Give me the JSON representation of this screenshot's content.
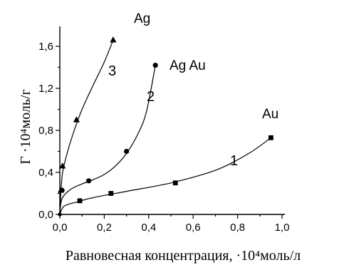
{
  "chart_data": {
    "type": "scatter",
    "xlabel": "Равновесная концентрация, ·10⁴моль/л",
    "ylabel": "Г ·10⁴моль/г",
    "xlim": [
      0.0,
      1.0
    ],
    "ylim": [
      0.0,
      1.7
    ],
    "xticks": [
      "0,0",
      "0,2",
      "0,4",
      "0,6",
      "0,8",
      "1,0"
    ],
    "yticks": [
      "0,0",
      "0,4",
      "0,8",
      "1,2",
      "1,6"
    ],
    "grid": false,
    "series": [
      {
        "name": "Ag",
        "curve_number": "3",
        "marker": "triangle",
        "points": [
          [
            0.0,
            0.0
          ],
          [
            0.005,
            0.23
          ],
          [
            0.012,
            0.46
          ],
          [
            0.075,
            0.9
          ],
          [
            0.24,
            1.66
          ]
        ],
        "fit": [
          [
            0.0,
            0.0
          ],
          [
            0.01,
            0.36
          ],
          [
            0.03,
            0.56
          ],
          [
            0.06,
            0.77
          ],
          [
            0.1,
            1.0
          ],
          [
            0.15,
            1.23
          ],
          [
            0.2,
            1.45
          ],
          [
            0.24,
            1.66
          ]
        ]
      },
      {
        "name": "Ag Au",
        "curve_number": "2",
        "marker": "circle",
        "points": [
          [
            0.0,
            0.0
          ],
          [
            0.01,
            0.23
          ],
          [
            0.13,
            0.32
          ],
          [
            0.3,
            0.6
          ],
          [
            0.43,
            1.42
          ]
        ],
        "fit": [
          [
            0.0,
            0.0
          ],
          [
            0.01,
            0.15
          ],
          [
            0.05,
            0.24
          ],
          [
            0.1,
            0.29
          ],
          [
            0.15,
            0.33
          ],
          [
            0.2,
            0.38
          ],
          [
            0.25,
            0.46
          ],
          [
            0.3,
            0.58
          ],
          [
            0.35,
            0.76
          ],
          [
            0.39,
            0.98
          ],
          [
            0.43,
            1.42
          ]
        ]
      },
      {
        "name": "Au",
        "curve_number": "1",
        "marker": "square",
        "points": [
          [
            0.0,
            0.0
          ],
          [
            0.09,
            0.13
          ],
          [
            0.23,
            0.2
          ],
          [
            0.52,
            0.3
          ],
          [
            0.95,
            0.73
          ]
        ],
        "fit": [
          [
            0.0,
            0.0
          ],
          [
            0.02,
            0.08
          ],
          [
            0.08,
            0.12
          ],
          [
            0.15,
            0.16
          ],
          [
            0.3,
            0.22
          ],
          [
            0.5,
            0.3
          ],
          [
            0.7,
            0.42
          ],
          [
            0.85,
            0.58
          ],
          [
            0.95,
            0.73
          ]
        ]
      }
    ]
  }
}
